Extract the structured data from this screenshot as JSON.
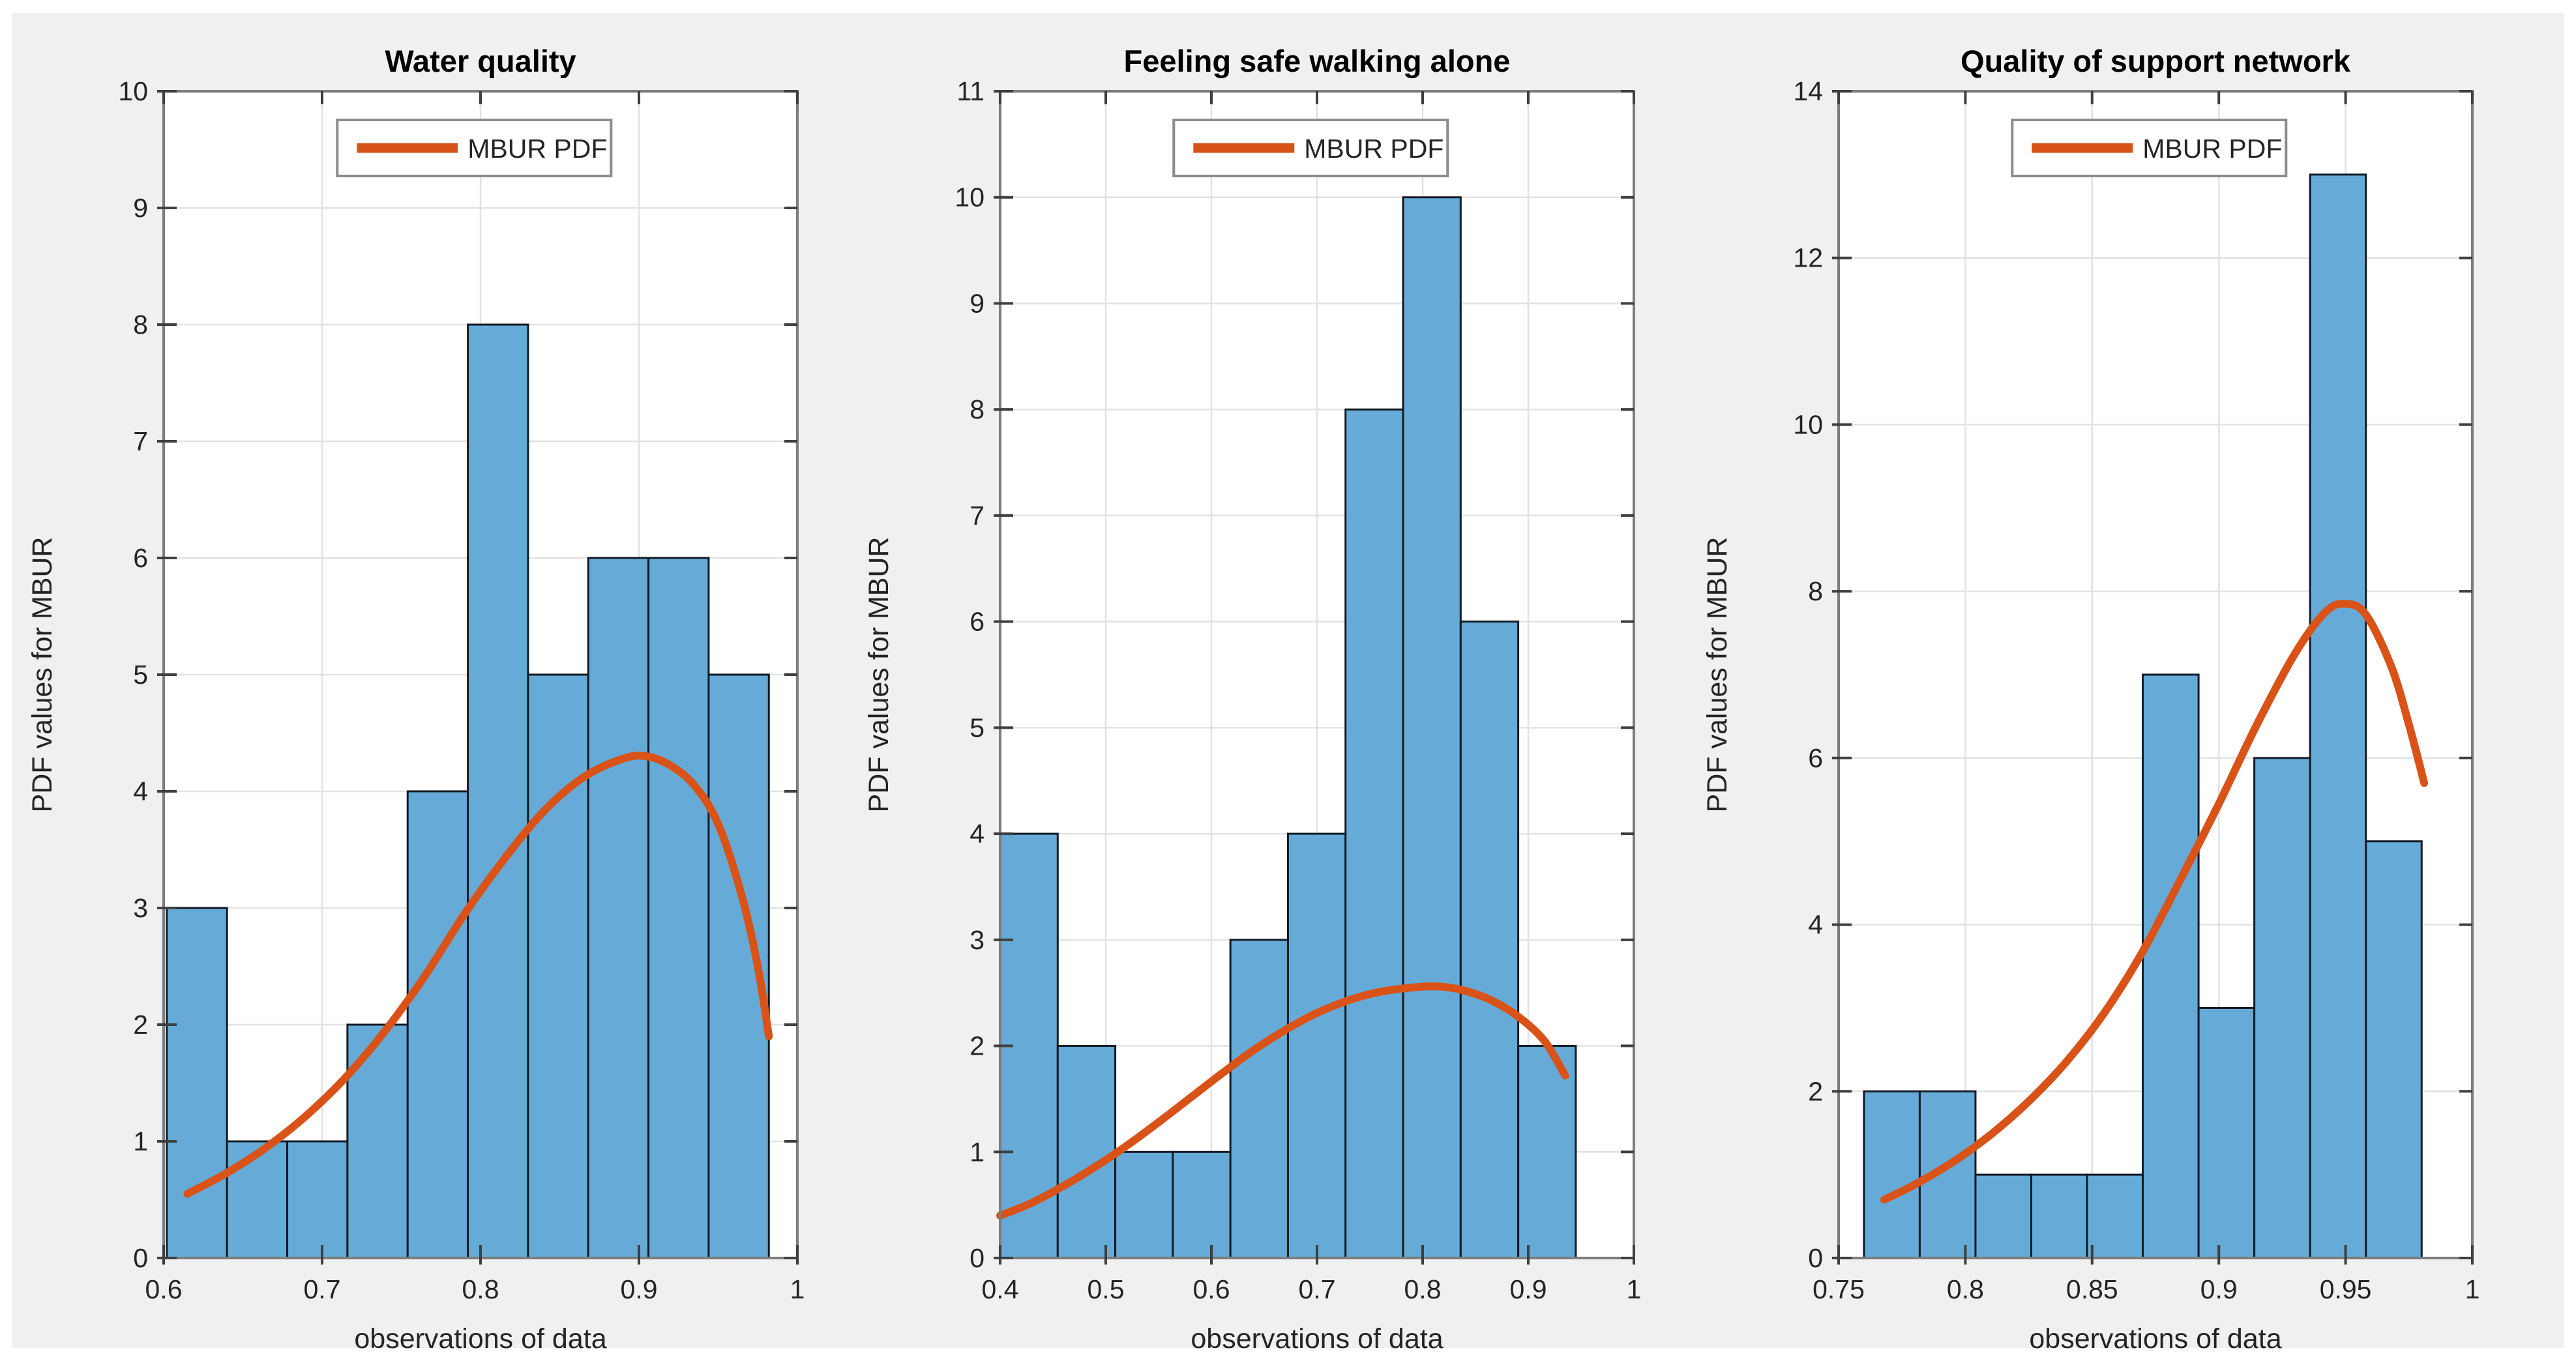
{
  "figure": {
    "background": "#F0F0F0",
    "outer_frame": "#FFFFFF",
    "axes_background": "#FFFFFF",
    "axes_border_color": "#7D7D7D",
    "grid_color": "#E2E2E2",
    "tick_color": "#3F3F3F",
    "text_color": "#242424",
    "title_color": "#000000",
    "bar_face_color": "#66ABD7",
    "bar_edge_color": "#121A24",
    "curve_color": "#D95319",
    "legend_background": "#FFFFFF",
    "legend_border_color": "#8C8C8C"
  },
  "chart_data": [
    {
      "type": "bar",
      "subtype": "histogram-with-pdf-line",
      "title": "Water quality",
      "xlabel": "observations of  data",
      "ylabel": "PDF values for MBUR",
      "legend": [
        "MBUR PDF"
      ],
      "legend_position": "inside-top-center",
      "grid": true,
      "xlim": [
        0.6,
        1.0
      ],
      "ylim": [
        0,
        10
      ],
      "xticks": [
        0.6,
        0.7,
        0.8,
        0.9,
        1
      ],
      "xtick_labels": [
        "0.6",
        "0.7",
        "0.8",
        "0.9",
        "1"
      ],
      "yticks": [
        0,
        1,
        2,
        3,
        4,
        5,
        6,
        7,
        8,
        9,
        10
      ],
      "ytick_labels": [
        "0",
        "1",
        "2",
        "3",
        "4",
        "5",
        "6",
        "7",
        "8",
        "9",
        "10"
      ],
      "bin_edges": [
        0.602,
        0.64,
        0.678,
        0.716,
        0.754,
        0.792,
        0.83,
        0.868,
        0.906,
        0.944,
        0.982
      ],
      "values": [
        3,
        1,
        1,
        2,
        4,
        8,
        5,
        6,
        6,
        5
      ],
      "series": [
        {
          "name": "MBUR PDF",
          "x": [
            0.615,
            0.64,
            0.665,
            0.69,
            0.715,
            0.74,
            0.765,
            0.79,
            0.815,
            0.84,
            0.865,
            0.89,
            0.905,
            0.92,
            0.935,
            0.95,
            0.965,
            0.975,
            0.982
          ],
          "y": [
            0.55,
            0.73,
            0.95,
            1.22,
            1.55,
            1.95,
            2.42,
            2.95,
            3.42,
            3.83,
            4.12,
            4.28,
            4.3,
            4.22,
            4.05,
            3.72,
            3.1,
            2.5,
            1.9
          ]
        }
      ]
    },
    {
      "type": "bar",
      "subtype": "histogram-with-pdf-line",
      "title": "Feeling safe walking alone",
      "xlabel": "observations of  data",
      "ylabel": "PDF values for MBUR",
      "legend": [
        "MBUR PDF"
      ],
      "legend_position": "inside-top-center",
      "grid": true,
      "xlim": [
        0.4,
        1.0
      ],
      "ylim": [
        0,
        11
      ],
      "xticks": [
        0.4,
        0.5,
        0.6,
        0.7,
        0.8,
        0.9,
        1
      ],
      "xtick_labels": [
        "0.4",
        "0.5",
        "0.6",
        "0.7",
        "0.8",
        "0.9",
        "1"
      ],
      "yticks": [
        0,
        1,
        2,
        3,
        4,
        5,
        6,
        7,
        8,
        9,
        10,
        11
      ],
      "ytick_labels": [
        "0",
        "1",
        "2",
        "3",
        "4",
        "5",
        "6",
        "7",
        "8",
        "9",
        "10",
        "11"
      ],
      "bin_edges": [
        0.4,
        0.4545,
        0.509,
        0.5635,
        0.618,
        0.6725,
        0.727,
        0.7815,
        0.836,
        0.8905,
        0.945
      ],
      "values": [
        4,
        2,
        1,
        1,
        3,
        4,
        8,
        10,
        6,
        2
      ],
      "series": [
        {
          "name": "MBUR PDF",
          "x": [
            0.4,
            0.43,
            0.46,
            0.49,
            0.52,
            0.55,
            0.58,
            0.61,
            0.64,
            0.67,
            0.7,
            0.73,
            0.76,
            0.79,
            0.815,
            0.84,
            0.865,
            0.89,
            0.915,
            0.935
          ],
          "y": [
            0.4,
            0.52,
            0.68,
            0.86,
            1.06,
            1.28,
            1.51,
            1.74,
            1.96,
            2.15,
            2.31,
            2.43,
            2.51,
            2.55,
            2.56,
            2.52,
            2.43,
            2.28,
            2.05,
            1.72
          ]
        }
      ]
    },
    {
      "type": "bar",
      "subtype": "histogram-with-pdf-line",
      "title": "Quality of support network",
      "xlabel": "observations of  data",
      "ylabel": "PDF values for MBUR",
      "legend": [
        "MBUR PDF"
      ],
      "legend_position": "inside-top-center",
      "grid": true,
      "xlim": [
        0.75,
        1.0
      ],
      "ylim": [
        0,
        14
      ],
      "xticks": [
        0.75,
        0.8,
        0.85,
        0.9,
        0.95,
        1
      ],
      "xtick_labels": [
        "0.75",
        "0.8",
        "0.85",
        "0.9",
        "0.95",
        "1"
      ],
      "yticks": [
        0,
        2,
        4,
        6,
        8,
        10,
        12,
        14
      ],
      "ytick_labels": [
        "0",
        "2",
        "4",
        "6",
        "8",
        "10",
        "12",
        "14"
      ],
      "bin_edges": [
        0.76,
        0.782,
        0.804,
        0.826,
        0.848,
        0.87,
        0.892,
        0.914,
        0.936,
        0.958,
        0.98
      ],
      "values": [
        2,
        2,
        1,
        1,
        1,
        7,
        3,
        6,
        13,
        5
      ],
      "series": [
        {
          "name": "MBUR PDF",
          "x": [
            0.768,
            0.78,
            0.795,
            0.81,
            0.825,
            0.84,
            0.855,
            0.87,
            0.885,
            0.9,
            0.915,
            0.93,
            0.942,
            0.95,
            0.958,
            0.968,
            0.975,
            0.981
          ],
          "y": [
            0.7,
            0.88,
            1.15,
            1.48,
            1.88,
            2.36,
            2.95,
            3.68,
            4.55,
            5.45,
            6.4,
            7.25,
            7.75,
            7.85,
            7.72,
            7.1,
            6.4,
            5.7
          ]
        }
      ]
    }
  ]
}
